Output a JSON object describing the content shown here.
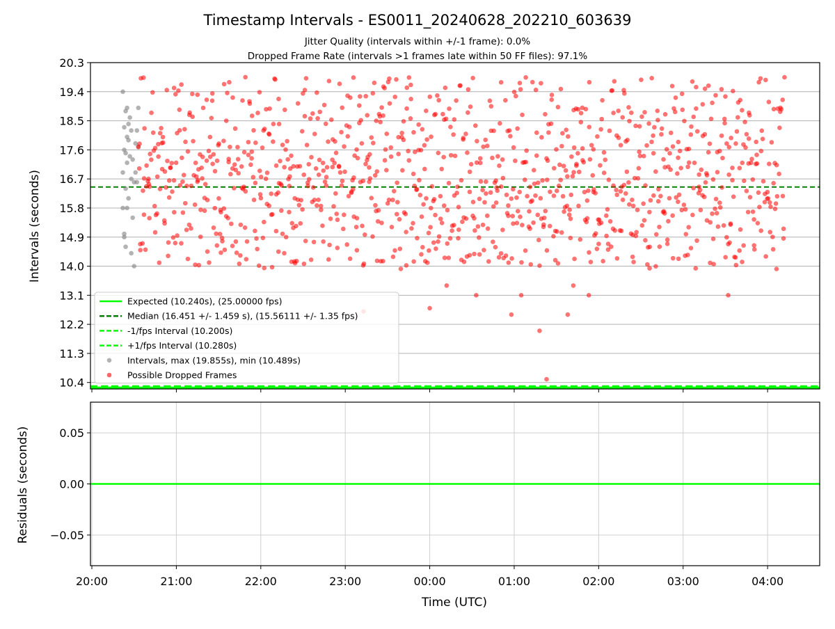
{
  "chart_data": {
    "type": "scatter",
    "title": "Timestamp Intervals - ES0011_20240628_202210_603639",
    "subtitle_lines": [
      "Jitter Quality (intervals within +/-1 frame): 0.0%",
      "Dropped Frame Rate (intervals >1 frames late within 50 FF files): 97.1%"
    ],
    "top_panel": {
      "ylabel": "Intervals (seconds)",
      "ylim": [
        10.2,
        20.3
      ],
      "y_ticks": [
        "10.4",
        "11.3",
        "12.2",
        "13.1",
        "14.0",
        "14.9",
        "15.8",
        "16.7",
        "17.6",
        "18.5",
        "19.4",
        "20.3"
      ],
      "grid": "y",
      "legend_position": "lower-left",
      "legend": [
        {
          "label": "Expected (10.240s), (25.00000 fps)",
          "style": "solid-line",
          "color": "#00ff00"
        },
        {
          "label": "Median (16.451 +/- 1.459 s), (15.56111 +/- 1.35 fps)",
          "style": "dashed-line",
          "color": "#008000"
        },
        {
          "label": "-1/fps Interval (10.200s)",
          "style": "dashed-line",
          "color": "#00ff00"
        },
        {
          "label": "+1/fps Interval (10.280s)",
          "style": "dashed-line",
          "color": "#00ff00"
        },
        {
          "label": "Intervals, max (19.855s), min (10.489s)",
          "style": "marker",
          "color": "#808080"
        },
        {
          "label": "Possible Dropped Frames",
          "style": "marker",
          "color": "#ff0000"
        }
      ],
      "lines": {
        "expected": 10.24,
        "median": 16.451,
        "minus_1fps": 10.2,
        "plus_1fps": 10.28
      },
      "series": [
        {
          "name": "Intervals",
          "color": "#808080",
          "points": [
            [
              "20:22",
              19.4
            ],
            [
              "20:22",
              16.9
            ],
            [
              "20:22",
              15.8
            ],
            [
              "20:23",
              18.3
            ],
            [
              "20:23",
              17.6
            ],
            [
              "20:23",
              15.0
            ],
            [
              "20:23",
              14.9
            ],
            [
              "20:24",
              18.8
            ],
            [
              "20:24",
              17.5
            ],
            [
              "20:24",
              16.4
            ],
            [
              "20:24",
              14.6
            ],
            [
              "20:25",
              18.9
            ],
            [
              "20:25",
              18.0
            ],
            [
              "20:25",
              17.2
            ],
            [
              "20:25",
              15.8
            ],
            [
              "20:26",
              18.4
            ],
            [
              "20:26",
              17.9
            ],
            [
              "20:26",
              16.1
            ],
            [
              "20:27",
              18.6
            ],
            [
              "20:27",
              17.4
            ],
            [
              "20:28",
              18.2
            ],
            [
              "20:28",
              16.7
            ],
            [
              "20:28",
              14.4
            ],
            [
              "20:29",
              17.3
            ],
            [
              "20:29",
              15.5
            ],
            [
              "20:30",
              16.6
            ],
            [
              "20:30",
              14.0
            ],
            [
              "20:31",
              17.8
            ],
            [
              "20:31",
              16.9
            ],
            [
              "20:32",
              18.2
            ],
            [
              "20:32",
              16.6
            ],
            [
              "20:33",
              17.7
            ],
            [
              "20:33",
              18.9
            ]
          ]
        },
        {
          "name": "Possible Dropped Frames",
          "color": "#ff0000",
          "x_range": [
            "20:33",
            "04:12"
          ],
          "y_range": [
            10.489,
            19.855
          ],
          "median": 16.451,
          "spread": 1.459,
          "count": 1050,
          "notable_points": [
            [
              "00:00",
              12.7
            ],
            [
              "00:12",
              13.4
            ],
            [
              "00:33",
              13.1
            ],
            [
              "00:58",
              12.5
            ],
            [
              "01:05",
              13.1
            ],
            [
              "01:18",
              12.0
            ],
            [
              "01:23",
              10.5
            ],
            [
              "01:38",
              12.5
            ],
            [
              "01:42",
              13.4
            ],
            [
              "01:53",
              13.1
            ],
            [
              "23:13",
              12.6
            ],
            [
              "03:32",
              13.1
            ],
            [
              "22:13",
              18.4
            ],
            [
              "23:22",
              18.5
            ]
          ]
        }
      ]
    },
    "bottom_panel": {
      "ylabel": "Residuals (seconds)",
      "ylim": [
        -0.08,
        0.08
      ],
      "y_ticks": [
        "0.05",
        "0.00",
        "−0.05"
      ],
      "grid": "xy",
      "lines": {
        "residual_zero": 0.0
      }
    },
    "x_axis": {
      "xlabel": "Time (UTC)",
      "tick_labels": [
        "20:00",
        "21:00",
        "22:00",
        "23:00",
        "00:00",
        "01:00",
        "02:00",
        "03:00",
        "04:00"
      ],
      "range": [
        "19:59",
        "04:37"
      ]
    }
  }
}
